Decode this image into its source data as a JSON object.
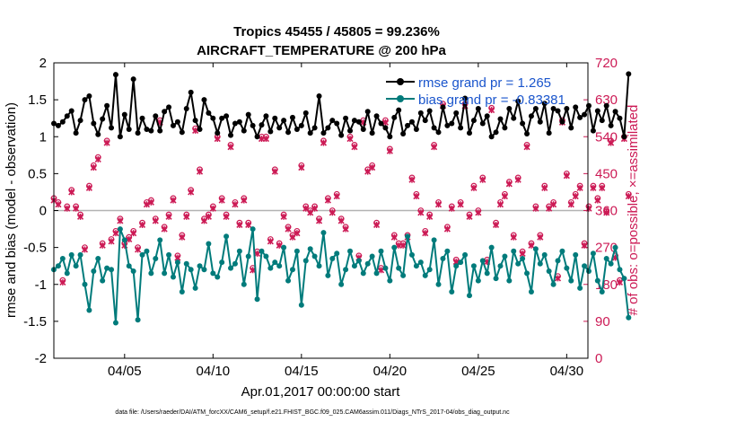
{
  "chart_data": {
    "type": "line",
    "title_line1": "Tropics 45455 / 45805 = 99.236%",
    "title_line2": "AIRCRAFT_TEMPERATURE @ 200 hPa",
    "xlabel": "Apr.01,2017 00:00:00 start",
    "ylabel_left": "rmse and bias (model - observation)",
    "ylabel_right": "# of obs: o=possible; ×=assimilated",
    "footer": "data file: /Users/raeder/DAI/ATM_forcXX/CAM6_setup/f.e21.FHIST_BGC.f09_025.CAM6assim.011/Diags_NTrS_2017-04/obs_diag_output.nc",
    "xlim": [
      1,
      31.2
    ],
    "ylim_left": [
      -2,
      2
    ],
    "ylim_right": [
      0,
      720
    ],
    "x_ticks": [
      5,
      10,
      15,
      20,
      25,
      30
    ],
    "x_tick_labels": [
      "04/05",
      "04/10",
      "04/15",
      "04/20",
      "04/25",
      "04/30"
    ],
    "y_left_ticks": [
      -2,
      -1.5,
      -1,
      -0.5,
      0,
      0.5,
      1,
      1.5,
      2
    ],
    "y_left_tick_labels": [
      "-2",
      "-1.5",
      "-1",
      "-0.5",
      "0",
      "0.5",
      "1",
      "1.5",
      "2"
    ],
    "y_right_ticks": [
      0,
      90,
      180,
      270,
      360,
      450,
      540,
      630,
      720
    ],
    "y_right_tick_labels": [
      "0",
      "90",
      "180",
      "270",
      "360",
      "450",
      "540",
      "630",
      "720"
    ],
    "x_start": 1.0,
    "x_step": 0.25,
    "colors": {
      "rmse": "#000000",
      "bias": "#007b7b",
      "obs": "#cc1a55",
      "legend_text": "#1a55cc",
      "zero_line": "#b3b3b3"
    },
    "series": [
      {
        "name": "rmse grand pr = 1.265",
        "values": [
          1.18,
          1.15,
          1.2,
          1.28,
          1.35,
          1.05,
          1.22,
          1.5,
          1.55,
          1.18,
          1.03,
          1.24,
          1.42,
          1.12,
          1.84,
          1.0,
          1.3,
          1.1,
          1.78,
          1.05,
          1.25,
          1.1,
          1.08,
          1.28,
          1.08,
          1.34,
          1.4,
          1.15,
          1.2,
          1.06,
          1.38,
          1.6,
          1.22,
          1.1,
          1.5,
          1.32,
          1.25,
          1.05,
          1.25,
          1.28,
          1.02,
          1.18,
          1.2,
          1.08,
          1.3,
          1.15,
          1.0,
          1.16,
          1.28,
          1.07,
          1.25,
          1.12,
          1.22,
          1.06,
          1.26,
          1.1,
          1.15,
          1.32,
          1.05,
          1.12,
          1.55,
          1.05,
          1.12,
          1.22,
          1.18,
          1.02,
          1.25,
          1.08,
          1.22,
          1.2,
          1.1,
          1.34,
          1.05,
          1.28,
          1.18,
          1.12,
          1.0,
          1.26,
          1.36,
          1.04,
          1.15,
          1.2,
          1.1,
          1.32,
          1.22,
          1.35,
          1.12,
          1.06,
          1.4,
          1.15,
          1.18,
          1.32,
          1.12,
          1.52,
          1.05,
          1.22,
          1.38,
          1.18,
          1.28,
          1.0,
          1.06,
          1.24,
          1.12,
          1.38,
          1.25,
          1.48,
          1.18,
          1.04,
          1.28,
          1.38,
          1.2,
          1.45,
          1.05,
          1.38,
          1.35,
          1.2,
          1.38,
          1.12,
          1.4,
          1.26,
          1.3,
          1.42,
          1.08,
          1.35,
          1.22,
          1.42,
          1.15,
          1.34,
          1.25,
          1.0,
          1.85
        ],
        "color": "#000000"
      },
      {
        "name": "bias grand pr = -0.83381",
        "values": [
          -0.8,
          -0.75,
          -0.65,
          -0.85,
          -0.6,
          -0.75,
          -0.6,
          -1.0,
          -1.35,
          -0.82,
          -0.65,
          -0.95,
          -0.78,
          -0.8,
          -1.52,
          -0.25,
          -0.4,
          -0.75,
          -0.82,
          -1.48,
          -0.6,
          -0.55,
          -0.85,
          -0.65,
          -0.4,
          -0.85,
          -0.6,
          -0.9,
          -0.7,
          -1.1,
          -0.72,
          -0.8,
          -1.05,
          -0.75,
          -0.8,
          -0.45,
          -0.85,
          -0.9,
          -0.7,
          -0.35,
          -0.78,
          -0.72,
          -0.55,
          -1.0,
          -0.62,
          -0.25,
          -1.2,
          -0.55,
          -0.62,
          -0.78,
          -0.7,
          -0.75,
          -0.5,
          -0.95,
          -0.8,
          -0.55,
          -1.28,
          -0.68,
          -0.52,
          -0.62,
          -0.75,
          -0.3,
          -0.88,
          -0.65,
          -0.58,
          -1.0,
          -0.8,
          -0.55,
          -0.75,
          -0.68,
          -0.85,
          -0.72,
          -0.62,
          -0.85,
          -0.55,
          -0.78,
          -0.95,
          -0.5,
          -0.78,
          -0.88,
          -0.35,
          -0.6,
          -0.75,
          -0.7,
          -0.88,
          -0.8,
          -0.4,
          -1.0,
          -0.65,
          -0.55,
          -1.1,
          -0.75,
          -0.7,
          -0.6,
          -1.15,
          -0.75,
          -0.95,
          -0.68,
          -0.85,
          -0.5,
          -0.92,
          -0.75,
          -0.62,
          -0.95,
          -0.55,
          -0.72,
          -0.65,
          -0.85,
          -1.1,
          -0.52,
          -0.72,
          -0.6,
          -0.82,
          -1.0,
          -0.68,
          -0.55,
          -0.78,
          -0.95,
          -0.6,
          -1.05,
          -0.75,
          -0.82,
          -0.58,
          -0.95,
          -1.1,
          -0.65,
          -0.72,
          -0.5,
          -0.8,
          -0.92,
          -1.45
        ],
        "color": "#007b7b"
      }
    ],
    "obs_possible_values": [
      390,
      380,
      190,
      370,
      410,
      370,
      350,
      270,
      420,
      470,
      490,
      280,
      530,
      290,
      310,
      340,
      280,
      295,
      310,
      270,
      330,
      380,
      385,
      340,
      580,
      320,
      350,
      390,
      250,
      300,
      350,
      410,
      560,
      460,
      340,
      350,
      370,
      540,
      390,
      350,
      520,
      380,
      330,
      390,
      330,
      220,
      260,
      540,
      540,
      290,
      460,
      280,
      350,
      320,
      300,
      310,
      470,
      370,
      360,
      370,
      340,
      530,
      390,
      360,
      400,
      340,
      320,
      540,
      520,
      250,
      580,
      460,
      470,
      330,
      220,
      580,
      510,
      300,
      280,
      280,
      300,
      440,
      400,
      360,
      310,
      350,
      520,
      380,
      620,
      320,
      370,
      240,
      380,
      620,
      350,
      420,
      360,
      440,
      240,
      610,
      330,
      380,
      400,
      430,
      300,
      440,
      260,
      520,
      280,
      370,
      300,
      420,
      370,
      380,
      200,
      580,
      450,
      380,
      400,
      420,
      280,
      370,
      420,
      390,
      420,
      360,
      530,
      250,
      190,
      540,
      400
    ],
    "obs_assim_values": [
      385,
      375,
      185,
      365,
      405,
      365,
      345,
      265,
      415,
      465,
      485,
      275,
      525,
      285,
      305,
      335,
      275,
      290,
      305,
      265,
      325,
      375,
      380,
      335,
      575,
      315,
      345,
      385,
      245,
      295,
      345,
      405,
      555,
      455,
      335,
      345,
      365,
      535,
      385,
      345,
      515,
      375,
      325,
      385,
      325,
      215,
      255,
      535,
      535,
      285,
      455,
      275,
      345,
      315,
      295,
      305,
      465,
      365,
      355,
      365,
      335,
      525,
      385,
      355,
      395,
      335,
      315,
      535,
      515,
      245,
      575,
      455,
      465,
      325,
      215,
      575,
      505,
      295,
      275,
      275,
      295,
      435,
      395,
      355,
      305,
      345,
      515,
      375,
      615,
      315,
      365,
      235,
      375,
      615,
      345,
      415,
      355,
      435,
      235,
      605,
      325,
      375,
      395,
      425,
      295,
      435,
      255,
      515,
      275,
      365,
      295,
      415,
      365,
      375,
      195,
      575,
      445,
      375,
      395,
      415,
      275,
      365,
      415,
      385,
      415,
      355,
      525,
      245,
      185,
      535,
      395
    ],
    "legend": [
      {
        "label": "rmse grand pr = 1.265",
        "color": "#000000"
      },
      {
        "label": "bias grand pr = -0.83381",
        "color": "#007b7b"
      }
    ],
    "legend_placement": "top-right",
    "grid": false
  }
}
